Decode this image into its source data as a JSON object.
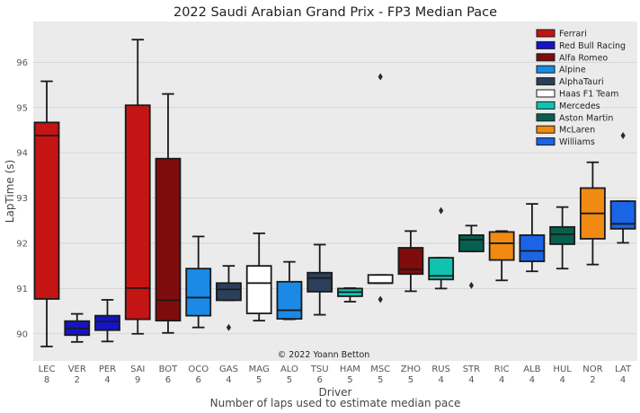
{
  "chart_data": {
    "type": "box",
    "title": "2022 Saudi Arabian Grand Prix - FP3 Median Pace",
    "xlabel": "Driver",
    "xlabel_sub": "Number of laps used to estimate median pace",
    "ylabel": "LapTime (s)",
    "ylim": [
      89.4,
      96.9
    ],
    "yticks": [
      90,
      91,
      92,
      93,
      94,
      95,
      96
    ],
    "grid": true,
    "legend_position": "top-right",
    "annotation": "© 2022 Yoann Betton",
    "legend": [
      {
        "team": "Ferrari",
        "color": "#c51414"
      },
      {
        "team": "Red Bull Racing",
        "color": "#1414c8"
      },
      {
        "team": "Alfa Romeo",
        "color": "#7e0c0c"
      },
      {
        "team": "Alpine",
        "color": "#1a8ae6"
      },
      {
        "team": "AlphaTauri",
        "color": "#2b3f5c"
      },
      {
        "team": "Haas F1 Team",
        "color": "#ffffff"
      },
      {
        "team": "Mercedes",
        "color": "#10c2b0"
      },
      {
        "team": "Aston Martin",
        "color": "#05604f"
      },
      {
        "team": "McLaren",
        "color": "#f08a12"
      },
      {
        "team": "Williams",
        "color": "#1a64e6"
      }
    ],
    "drivers": [
      {
        "driver": "LEC",
        "laps": "8",
        "color": "#c51414",
        "whislo": 89.72,
        "q1": 90.77,
        "med": 94.38,
        "q3": 94.67,
        "whishi": 95.58,
        "fliers": []
      },
      {
        "driver": "VER",
        "laps": "2",
        "color": "#1414c8",
        "whislo": 89.82,
        "q1": 89.97,
        "med": 90.12,
        "q3": 90.28,
        "whishi": 90.44,
        "fliers": []
      },
      {
        "driver": "PER",
        "laps": "4",
        "color": "#1414c8",
        "whislo": 89.83,
        "q1": 90.08,
        "med": 90.27,
        "q3": 90.4,
        "whishi": 90.75,
        "fliers": []
      },
      {
        "driver": "SAI",
        "laps": "9",
        "color": "#c51414",
        "whislo": 90.0,
        "q1": 90.32,
        "med": 91.01,
        "q3": 95.05,
        "whishi": 96.5,
        "fliers": []
      },
      {
        "driver": "BOT",
        "laps": "6",
        "color": "#7e0c0c",
        "whislo": 90.02,
        "q1": 90.29,
        "med": 90.74,
        "q3": 93.87,
        "whishi": 95.3,
        "fliers": []
      },
      {
        "driver": "OCO",
        "laps": "6",
        "color": "#1a8ae6",
        "whislo": 90.14,
        "q1": 90.4,
        "med": 90.8,
        "q3": 91.44,
        "whishi": 92.15,
        "fliers": []
      },
      {
        "driver": "GAS",
        "laps": "4",
        "color": "#2b3f5c",
        "whislo": 90.74,
        "q1": 90.74,
        "med": 90.98,
        "q3": 91.12,
        "whishi": 91.5,
        "fliers": [
          90.14
        ]
      },
      {
        "driver": "MAG",
        "laps": "5",
        "color": "#ffffff",
        "whislo": 90.29,
        "q1": 90.45,
        "med": 91.12,
        "q3": 91.5,
        "whishi": 92.22,
        "fliers": []
      },
      {
        "driver": "ALO",
        "laps": "5",
        "color": "#1a8ae6",
        "whislo": 90.32,
        "q1": 90.33,
        "med": 90.52,
        "q3": 91.15,
        "whishi": 91.59,
        "fliers": []
      },
      {
        "driver": "TSU",
        "laps": "6",
        "color": "#2b3f5c",
        "whislo": 90.42,
        "q1": 90.93,
        "med": 91.23,
        "q3": 91.35,
        "whishi": 91.97,
        "fliers": []
      },
      {
        "driver": "HAM",
        "laps": "5",
        "color": "#10c2b0",
        "whislo": 90.71,
        "q1": 90.83,
        "med": 90.92,
        "q3": 91.0,
        "whishi": 91.01,
        "fliers": []
      },
      {
        "driver": "MSC",
        "laps": "5",
        "color": "#ffffff",
        "whislo": 91.12,
        "q1": 91.12,
        "med": 91.12,
        "q3": 91.3,
        "whishi": 91.3,
        "fliers": [
          95.68,
          90.76
        ]
      },
      {
        "driver": "ZHO",
        "laps": "5",
        "color": "#7e0c0c",
        "whislo": 90.94,
        "q1": 91.32,
        "med": 91.42,
        "q3": 91.9,
        "whishi": 92.27,
        "fliers": []
      },
      {
        "driver": "RUS",
        "laps": "4",
        "color": "#10c2b0",
        "whislo": 91.0,
        "q1": 91.2,
        "med": 91.28,
        "q3": 91.68,
        "whishi": 91.68,
        "fliers": [
          92.72
        ]
      },
      {
        "driver": "STR",
        "laps": "4",
        "color": "#05604f",
        "whislo": 91.82,
        "q1": 91.82,
        "med": 92.08,
        "q3": 92.18,
        "whishi": 92.39,
        "fliers": [
          91.07
        ]
      },
      {
        "driver": "RIC",
        "laps": "4",
        "color": "#f08a12",
        "whislo": 91.18,
        "q1": 91.63,
        "med": 92.0,
        "q3": 92.25,
        "whishi": 92.27,
        "fliers": []
      },
      {
        "driver": "ALB",
        "laps": "4",
        "color": "#1a64e6",
        "whislo": 91.38,
        "q1": 91.6,
        "med": 91.83,
        "q3": 92.18,
        "whishi": 92.87,
        "fliers": []
      },
      {
        "driver": "HUL",
        "laps": "4",
        "color": "#05604f",
        "whislo": 91.44,
        "q1": 91.98,
        "med": 92.2,
        "q3": 92.36,
        "whishi": 92.8,
        "fliers": []
      },
      {
        "driver": "NOR",
        "laps": "2",
        "color": "#f08a12",
        "whislo": 91.53,
        "q1": 92.1,
        "med": 92.66,
        "q3": 93.22,
        "whishi": 93.79,
        "fliers": []
      },
      {
        "driver": "LAT",
        "laps": "4",
        "color": "#1a64e6",
        "whislo": 92.01,
        "q1": 92.32,
        "med": 92.43,
        "q3": 92.93,
        "whishi": 92.93,
        "fliers": [
          94.38
        ]
      }
    ]
  }
}
